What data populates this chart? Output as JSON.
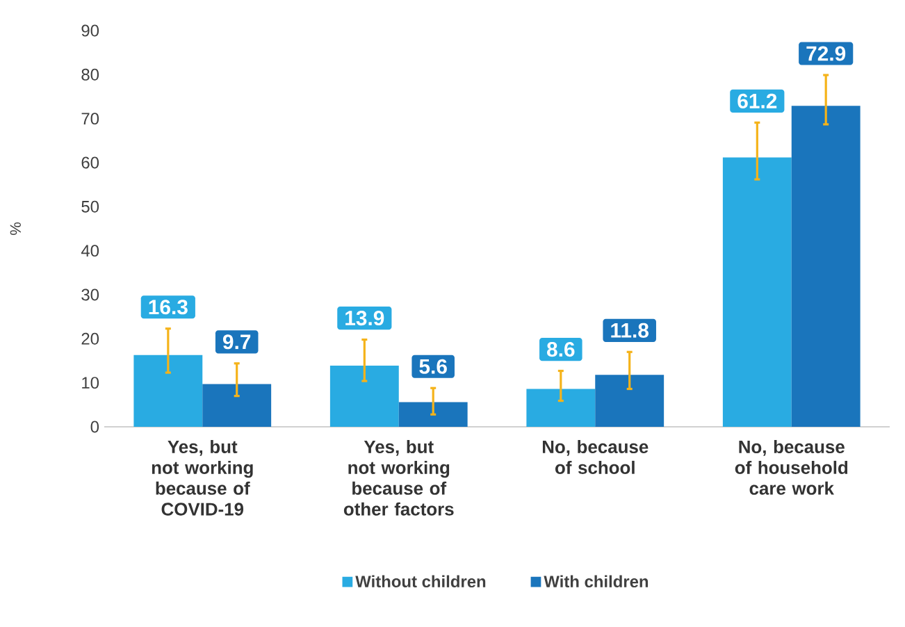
{
  "chart_data": {
    "type": "bar",
    "ylabel": "%",
    "categories": [
      "Yes, but not working because of COVID-19",
      "Yes, but not working because of other factors",
      "No, because of school",
      "No, because of household care work"
    ],
    "series": [
      {
        "name": "Without children",
        "color": "#29abe2",
        "values": [
          16.3,
          13.9,
          8.6,
          61.2
        ],
        "errors": [
          [
            12.3,
            22.3
          ],
          [
            10.4,
            19.8
          ],
          [
            5.9,
            12.7
          ],
          [
            56.2,
            69.1
          ]
        ]
      },
      {
        "name": "With children",
        "color": "#1a75bc",
        "values": [
          9.7,
          5.6,
          11.8,
          72.9
        ],
        "errors": [
          [
            7.0,
            14.4
          ],
          [
            2.8,
            8.8
          ],
          [
            8.6,
            17.0
          ],
          [
            68.7,
            79.9
          ]
        ]
      }
    ],
    "ylim": [
      0,
      90
    ],
    "yticks": [
      0,
      10,
      20,
      30,
      40,
      50,
      60,
      70,
      80,
      90
    ],
    "data_labels": true,
    "legend": "bottom",
    "grid": false
  }
}
